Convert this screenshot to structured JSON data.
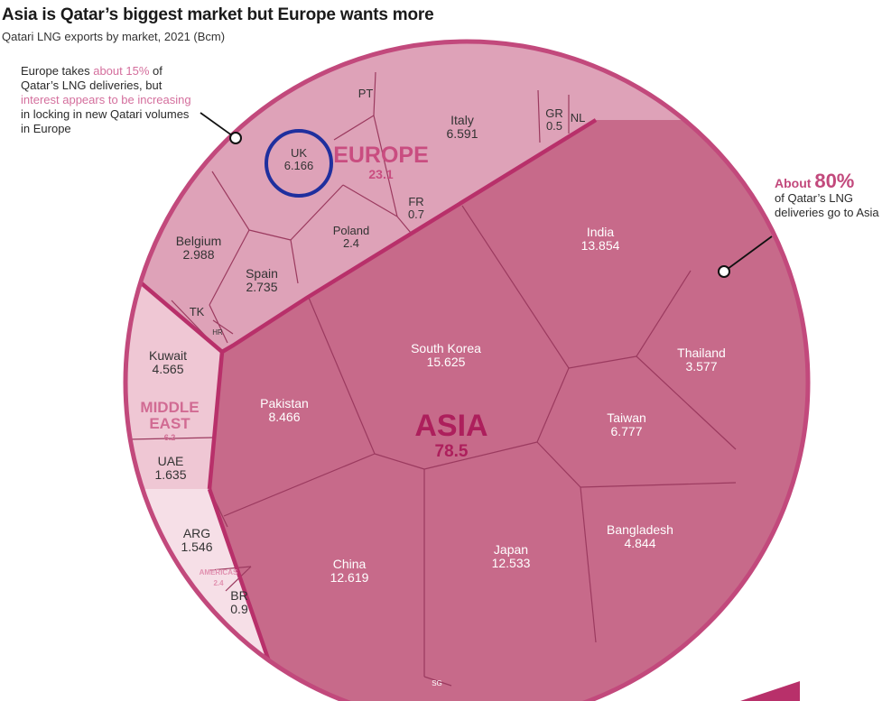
{
  "title": "Asia is Qatar’s biggest market but Europe wants more",
  "subtitle": "Qatari LNG exports by market, 2021 (Bcm)",
  "notes": {
    "europe": {
      "part1": "Europe takes ",
      "highlight1": "about 15%",
      "part2": " of Qatar’s LNG deliveries, but ",
      "highlight2": "interest appears to be increasing",
      "part3": " in locking in new Qatari volumes in Europe"
    },
    "asia": {
      "lead": "About ",
      "big": "80%",
      "rest": "of Qatar’s LNG deliveries go to Asia"
    }
  },
  "colors": {
    "asia_fill": "#c76a8a",
    "europe_fill": "#dea2b8",
    "middle_east_fill": "#efc7d4",
    "americas_fill": "#f6dfe7",
    "asia_label": "#ad1f5c",
    "europe_label": "#c94d80",
    "middle_east_label": "#d16b93",
    "americas_label": "#e191b0",
    "highlight_circle": "#1f2f9e"
  },
  "chart_data": {
    "type": "voronoi-treemap",
    "regions": [
      {
        "name": "EUROPE",
        "total": "23.1",
        "markets": [
          {
            "name": "PT",
            "value": ""
          },
          {
            "name": "Italy",
            "value": "6.591"
          },
          {
            "name": "GR",
            "value": "0.5"
          },
          {
            "name": "NL",
            "value": ""
          },
          {
            "name": "UK",
            "value": "6.166",
            "highlighted": true
          },
          {
            "name": "FR",
            "value": "0.7"
          },
          {
            "name": "Poland",
            "value": "2.4"
          },
          {
            "name": "Belgium",
            "value": "2.988"
          },
          {
            "name": "Spain",
            "value": "2.735"
          },
          {
            "name": "TK",
            "value": ""
          },
          {
            "name": "HR",
            "value": ""
          }
        ]
      },
      {
        "name": "ASIA",
        "total": "78.5",
        "markets": [
          {
            "name": "India",
            "value": "13.854"
          },
          {
            "name": "South Korea",
            "value": "15.625"
          },
          {
            "name": "Pakistan",
            "value": "8.466"
          },
          {
            "name": "Thailand",
            "value": "3.577"
          },
          {
            "name": "Taiwan",
            "value": "6.777"
          },
          {
            "name": "Bangladesh",
            "value": "4.844"
          },
          {
            "name": "China",
            "value": "12.619"
          },
          {
            "name": "Japan",
            "value": "12.533"
          },
          {
            "name": "SG",
            "value": ""
          }
        ]
      },
      {
        "name": "MIDDLE EAST",
        "total": "6.2",
        "markets": [
          {
            "name": "Kuwait",
            "value": "4.565"
          },
          {
            "name": "UAE",
            "value": "1.635"
          }
        ]
      },
      {
        "name": "AMERICAS",
        "total": "2.4",
        "markets": [
          {
            "name": "ARG",
            "value": "1.546"
          },
          {
            "name": "BR",
            "value": "0.9"
          }
        ]
      }
    ]
  }
}
